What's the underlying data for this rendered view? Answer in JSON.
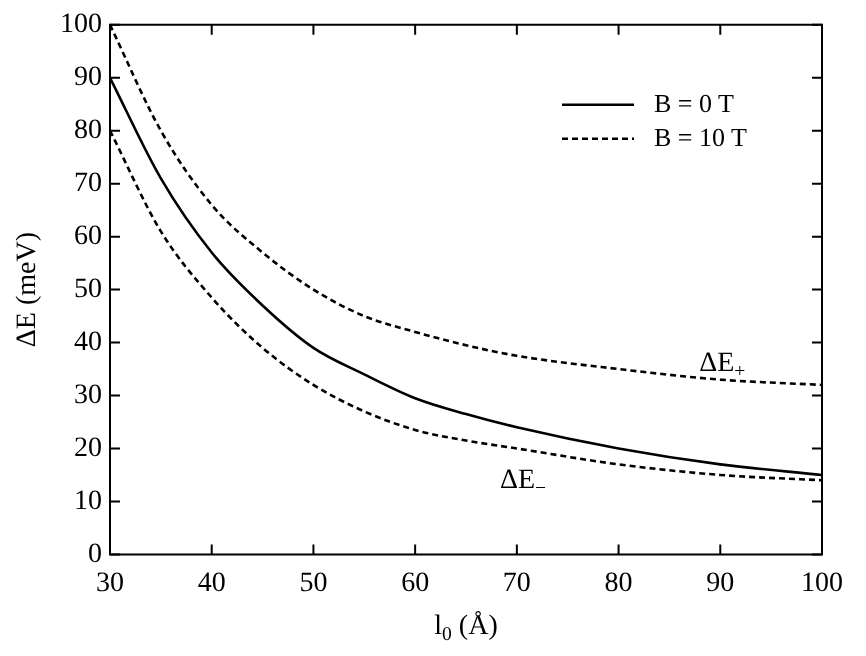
{
  "chart_data": {
    "type": "line",
    "xlabel": "l$_{0}$ (Å)",
    "ylabel": "ΔE (meV)",
    "x": [
      30,
      35,
      40,
      45,
      50,
      55,
      60,
      65,
      70,
      80,
      90,
      100
    ],
    "series": [
      {
        "name": "B = 0 T",
        "color": "#000000",
        "line_style": "solid",
        "values": [
          90,
          71,
          57,
          47,
          39,
          34,
          29.5,
          26.5,
          24,
          20,
          17,
          15
        ]
      },
      {
        "name": "B = 10 T",
        "color": "#000000",
        "line_style": "dashed",
        "values": [
          100,
          80,
          66,
          57,
          50,
          45,
          42,
          39.5,
          37.5,
          35,
          33,
          32
        ]
      },
      {
        "color": "#000000",
        "line_style": "dashed",
        "values": [
          80,
          61,
          48.5,
          39,
          32,
          27,
          23.5,
          21.5,
          20,
          17,
          15,
          14
        ]
      }
    ],
    "xlim": [
      30,
      100
    ],
    "xticks": [
      30,
      40,
      50,
      60,
      70,
      80,
      90,
      100
    ],
    "ylim": [
      0,
      100
    ],
    "yticks": [
      0,
      10,
      20,
      30,
      40,
      50,
      60,
      70,
      80,
      90,
      100
    ],
    "grid": false,
    "legend": "top right",
    "marker": "none",
    "annotations": [
      "ΔE$_{+}$",
      "ΔE$_{−}$"
    ]
  }
}
